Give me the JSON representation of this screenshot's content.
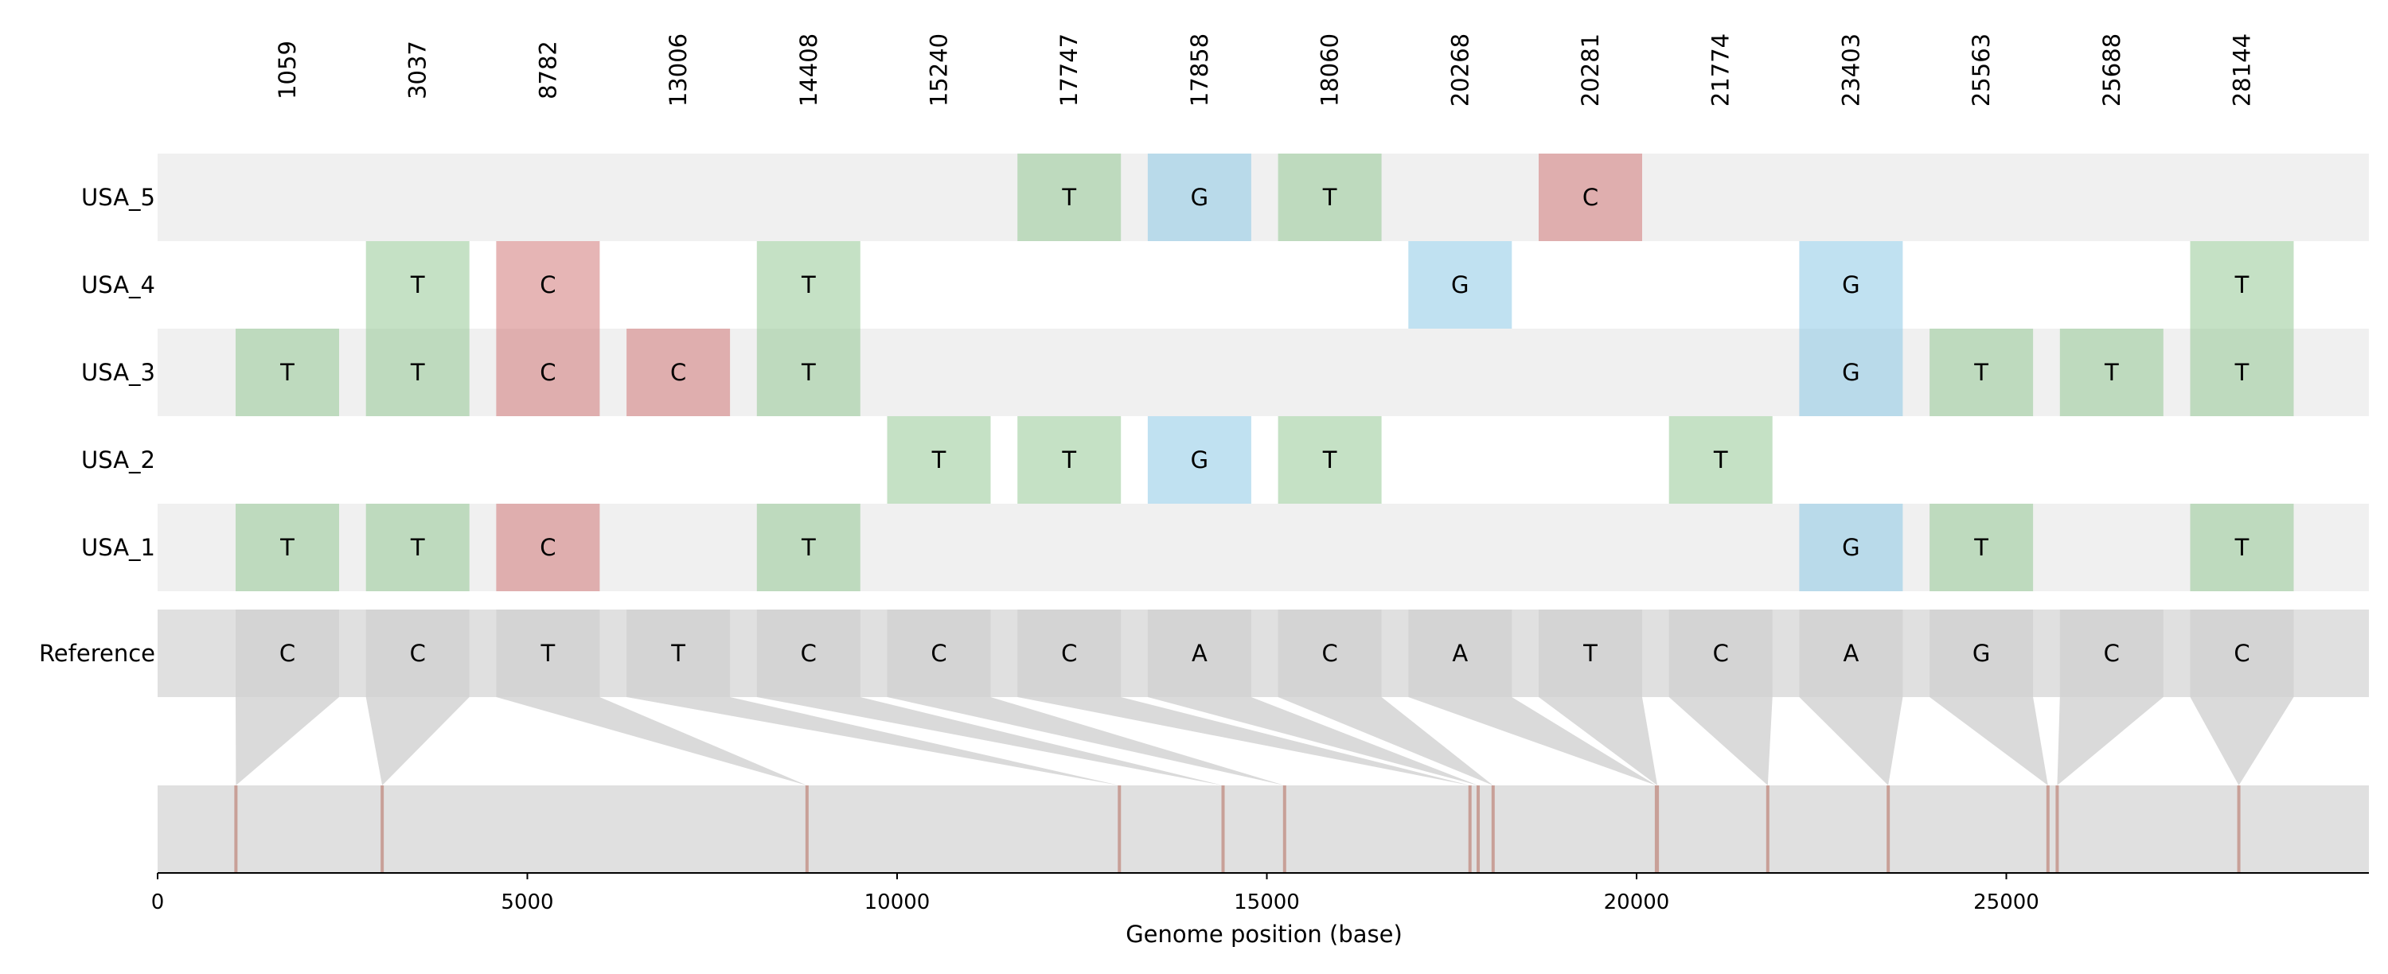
{
  "chart_data": {
    "type": "heatmap",
    "title": "",
    "xlabel": "Genome position (base)",
    "ylabel": "",
    "genome_length": 29903,
    "xlim": [
      0,
      29903
    ],
    "x_ticks": [
      0,
      5000,
      10000,
      15000,
      20000,
      25000
    ],
    "positions": [
      1059,
      3037,
      8782,
      13006,
      14408,
      15240,
      17747,
      17858,
      18060,
      20268,
      20281,
      21774,
      23403,
      25563,
      25688,
      28144
    ],
    "reference": {
      "label": "Reference",
      "bases": [
        "C",
        "C",
        "T",
        "T",
        "C",
        "C",
        "C",
        "A",
        "C",
        "A",
        "T",
        "C",
        "A",
        "G",
        "C",
        "C"
      ]
    },
    "samples": [
      {
        "label": "USA_5",
        "bases": [
          "",
          "",
          "",
          "",
          "",
          "",
          "T",
          "G",
          "T",
          "",
          "C",
          "",
          "",
          "",
          "",
          ""
        ]
      },
      {
        "label": "USA_4",
        "bases": [
          "",
          "T",
          "C",
          "",
          "T",
          "",
          "",
          "",
          "",
          "G",
          "",
          "",
          "G",
          "",
          "",
          "T"
        ]
      },
      {
        "label": "USA_3",
        "bases": [
          "T",
          "T",
          "C",
          "C",
          "T",
          "",
          "",
          "",
          "",
          "",
          "",
          "",
          "G",
          "T",
          "T",
          "T"
        ]
      },
      {
        "label": "USA_2",
        "bases": [
          "",
          "",
          "",
          "",
          "",
          "T",
          "T",
          "G",
          "T",
          "",
          "",
          "T",
          "",
          "",
          "",
          ""
        ]
      },
      {
        "label": "USA_1",
        "bases": [
          "T",
          "T",
          "C",
          "",
          "T",
          "",
          "",
          "",
          "",
          "",
          "",
          "",
          "G",
          "T",
          "",
          "T"
        ]
      }
    ],
    "colors": {
      "T": "#96c896",
      "C": "#d27878",
      "G": "#8cc8e6",
      "A": "#e6c878",
      "row_stripe": "#f0f0f0",
      "reference_band": "#e0e0e0",
      "reference_cell": "#d4d4d4",
      "connector": "#dadada",
      "genome_bar": "#e0e0e0",
      "site_marker": "#c8a098",
      "text": "#000000"
    }
  }
}
